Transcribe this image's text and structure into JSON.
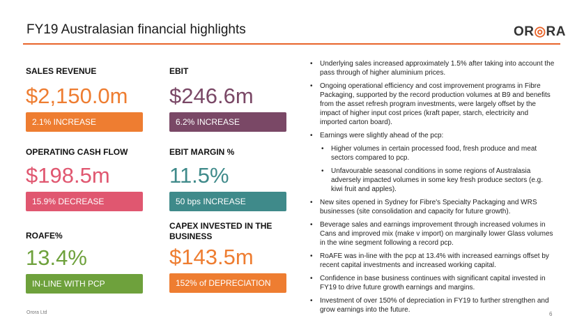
{
  "header": {
    "title": "FY19 Australasian financial highlights",
    "logo_prefix": "OR",
    "logo_ring": "◎",
    "logo_suffix": "RA"
  },
  "metrics": [
    {
      "label": "SALES REVENUE",
      "value": "$2,150.0m",
      "bar": "2.1% INCREASE",
      "color": "#ee7d31"
    },
    {
      "label": "EBIT",
      "value": "$246.6m",
      "bar": "6.2% INCREASE",
      "color": "#7a4866"
    },
    {
      "label": "OPERATING CASH FLOW",
      "value": "$198.5m",
      "bar": "15.9% DECREASE",
      "color": "#e05770"
    },
    {
      "label": "EBIT MARGIN %",
      "value": "11.5%",
      "bar": "50 bps INCREASE",
      "color": "#3f8a8a"
    },
    {
      "label": "ROAFE%",
      "value": "13.4%",
      "bar": "IN-LINE WITH PCP",
      "color": "#6ea13c"
    },
    {
      "label": "CAPEX INVESTED IN THE BUSINESS",
      "value": "$143.5m",
      "bar": "152% of DEPRECIATION",
      "color": "#ee7d31"
    }
  ],
  "bullets": [
    "Underlying sales increased approximately 1.5% after taking into account the pass through of higher aluminium prices.",
    "Ongoing operational efficiency and cost improvement programs in Fibre Packaging, supported by the record production volumes at B9 and benefits from the asset refresh program investments, were largely offset by the impact of higher input cost prices (kraft paper, starch, electricity and imported carton board).",
    "Earnings were slightly ahead of the pcp:",
    "Higher volumes in certain processed food, fresh produce and meat sectors compared to pcp.",
    "Unfavourable seasonal conditions in some regions of Australasia adversely impacted volumes in some key fresh produce sectors (e.g. kiwi fruit and apples).",
    "New sites opened in Sydney for Fibre's Specialty Packaging and WRS businesses (site consolidation and capacity for future growth).",
    "Beverage sales and earnings improvement through increased volumes in Cans and improved mix (make v import) on marginally lower Glass volumes in the wine segment following a record pcp.",
    "RoAFE was in-line with the pcp at 13.4% with increased earnings offset by recent capital investments and increased working capital.",
    "Confidence in base business continues with significant capital invested in FY19 to drive future growth earnings and margins.",
    "Investment of over 150% of depreciation in FY19 to further strengthen and grow earnings into the future."
  ],
  "footer": {
    "company": "Orora Ltd",
    "page": "6"
  }
}
